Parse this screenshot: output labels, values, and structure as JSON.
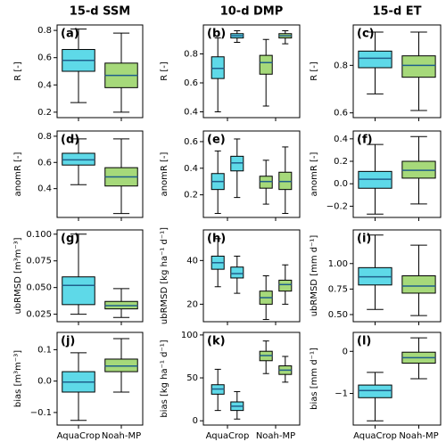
{
  "chart_data": [
    {
      "type": "box",
      "title": "15-d SSM",
      "panel_label": "(a)",
      "ylabel": "R [-]",
      "ylim": [
        0.16,
        0.84
      ],
      "yticks": [
        0.2,
        0.4,
        0.6,
        0.8
      ],
      "colors": [
        "#5ed9e8",
        "#a6d97a"
      ],
      "series": [
        {
          "boxes": [
            {
              "min": 0.27,
              "q1": 0.5,
              "median": 0.58,
              "q3": 0.66,
              "max": 0.81
            },
            {
              "min": 0.2,
              "q1": 0.38,
              "median": 0.47,
              "q3": 0.56,
              "max": 0.78
            }
          ]
        }
      ]
    },
    {
      "type": "box",
      "title": "10-d DMP",
      "panel_label": "(b)",
      "ylabel": "R [-]",
      "ylim": [
        0.36,
        1.0
      ],
      "yticks": [
        0.4,
        0.6,
        0.8
      ],
      "colors": [
        "#5ed9e8",
        "#a6d97a"
      ],
      "series": [
        {
          "boxes": [
            {
              "min": 0.4,
              "q1": 0.63,
              "median": 0.7,
              "q3": 0.78,
              "max": 0.91
            },
            {
              "min": 0.44,
              "q1": 0.66,
              "median": 0.74,
              "q3": 0.79,
              "max": 0.9
            }
          ]
        },
        {
          "boxes": [
            {
              "min": 0.88,
              "q1": 0.91,
              "median": 0.925,
              "q3": 0.94,
              "max": 0.96
            },
            {
              "min": 0.87,
              "q1": 0.91,
              "median": 0.925,
              "q3": 0.94,
              "max": 0.96
            }
          ]
        }
      ]
    },
    {
      "type": "box",
      "title": "15-d ET",
      "panel_label": "(c)",
      "ylabel": "R [-]",
      "ylim": [
        0.58,
        0.97
      ],
      "yticks": [
        0.6,
        0.8
      ],
      "colors": [
        "#5ed9e8",
        "#a6d97a"
      ],
      "series": [
        {
          "boxes": [
            {
              "min": 0.68,
              "q1": 0.79,
              "median": 0.83,
              "q3": 0.86,
              "max": 0.94
            },
            {
              "min": 0.61,
              "q1": 0.75,
              "median": 0.8,
              "q3": 0.84,
              "max": 0.94
            }
          ]
        }
      ]
    },
    {
      "type": "box",
      "panel_label": "(d)",
      "ylabel": "anomR [-]",
      "ylim": [
        0.18,
        0.84
      ],
      "yticks": [
        0.4,
        0.6,
        0.8
      ],
      "colors": [
        "#5ed9e8",
        "#a6d97a"
      ],
      "series": [
        {
          "boxes": [
            {
              "min": 0.43,
              "q1": 0.58,
              "median": 0.62,
              "q3": 0.67,
              "max": 0.78
            },
            {
              "min": 0.21,
              "q1": 0.42,
              "median": 0.49,
              "q3": 0.56,
              "max": 0.78
            }
          ]
        }
      ]
    },
    {
      "type": "box",
      "panel_label": "(e)",
      "ylabel": "anomR [-]",
      "ylim": [
        0.03,
        0.68
      ],
      "yticks": [
        0.2,
        0.4,
        0.6
      ],
      "colors": [
        "#5ed9e8",
        "#a6d97a"
      ],
      "series": [
        {
          "boxes": [
            {
              "min": 0.06,
              "q1": 0.24,
              "median": 0.3,
              "q3": 0.36,
              "max": 0.53
            },
            {
              "min": 0.13,
              "q1": 0.25,
              "median": 0.3,
              "q3": 0.34,
              "max": 0.46
            }
          ]
        },
        {
          "boxes": [
            {
              "min": 0.18,
              "q1": 0.38,
              "median": 0.44,
              "q3": 0.49,
              "max": 0.62
            },
            {
              "min": 0.06,
              "q1": 0.24,
              "median": 0.3,
              "q3": 0.37,
              "max": 0.56
            }
          ]
        }
      ]
    },
    {
      "type": "box",
      "panel_label": "(f)",
      "ylabel": "anomR [-]",
      "ylim": [
        -0.3,
        0.47
      ],
      "yticks": [
        {
          "value": -0.2,
          "label": "−0.2"
        },
        {
          "value": 0,
          "label": "0.0"
        },
        0.2,
        0.4
      ],
      "colors": [
        "#5ed9e8",
        "#a6d97a"
      ],
      "series": [
        {
          "boxes": [
            {
              "min": -0.27,
              "q1": -0.04,
              "median": 0.04,
              "q3": 0.11,
              "max": 0.35
            },
            {
              "min": -0.18,
              "q1": 0.05,
              "median": 0.12,
              "q3": 0.2,
              "max": 0.42
            }
          ]
        }
      ]
    },
    {
      "type": "box",
      "panel_label": "(g)",
      "ylabel": "ubRMSD [m³m⁻³]",
      "ylim": [
        0.018,
        0.104
      ],
      "yticks": [
        0.025,
        {
          "value": 0.05,
          "label": "0.050"
        },
        0.075,
        {
          "value": 0.1,
          "label": "0.100"
        }
      ],
      "colors": [
        "#5ed9e8",
        "#a6d97a"
      ],
      "series": [
        {
          "boxes": [
            {
              "min": 0.025,
              "q1": 0.034,
              "median": 0.052,
              "q3": 0.06,
              "max": 0.1
            },
            {
              "min": 0.022,
              "q1": 0.03,
              "median": 0.033,
              "q3": 0.037,
              "max": 0.049
            }
          ]
        }
      ]
    },
    {
      "type": "box",
      "panel_label": "(h)",
      "ylabel": "ubRMSD [kg ha⁻¹ d⁻¹]",
      "ylim": [
        12,
        54
      ],
      "yticks": [
        20,
        40
      ],
      "colors": [
        "#5ed9e8",
        "#a6d97a"
      ],
      "series": [
        {
          "boxes": [
            {
              "min": 28,
              "q1": 36,
              "median": 39,
              "q3": 42,
              "max": 50
            },
            {
              "min": 13,
              "q1": 20,
              "median": 23,
              "q3": 26,
              "max": 33
            }
          ]
        },
        {
          "boxes": [
            {
              "min": 25,
              "q1": 32,
              "median": 34,
              "q3": 37,
              "max": 42
            },
            {
              "min": 20,
              "q1": 26,
              "median": 29,
              "q3": 31,
              "max": 38
            }
          ]
        }
      ]
    },
    {
      "type": "box",
      "panel_label": "(i)",
      "ylabel": "ubRMSD [mm d⁻¹]",
      "ylim": [
        0.43,
        1.33
      ],
      "yticks": [
        {
          "value": 0.5,
          "label": "0.50"
        },
        0.75,
        {
          "value": 1,
          "label": "1.00"
        }
      ],
      "colors": [
        "#5ed9e8",
        "#a6d97a"
      ],
      "series": [
        {
          "boxes": [
            {
              "min": 0.55,
              "q1": 0.79,
              "median": 0.87,
              "q3": 0.96,
              "max": 1.28
            },
            {
              "min": 0.49,
              "q1": 0.71,
              "median": 0.78,
              "q3": 0.88,
              "max": 1.18
            }
          ]
        }
      ]
    },
    {
      "type": "box",
      "panel_label": "(j)",
      "ylabel": "bias [m³m⁻³]",
      "ylim": [
        -0.14,
        0.155
      ],
      "yticks": [
        {
          "value": -0.1,
          "label": "−0.1"
        },
        {
          "value": 0,
          "label": "0.0"
        },
        0.1
      ],
      "colors": [
        "#5ed9e8",
        "#a6d97a"
      ],
      "categories": [
        "AquaCrop",
        "Noah-MP"
      ],
      "series": [
        {
          "boxes": [
            {
              "min": -0.125,
              "q1": -0.035,
              "median": -0.003,
              "q3": 0.03,
              "max": 0.09
            },
            {
              "min": -0.035,
              "q1": 0.03,
              "median": 0.048,
              "q3": 0.07,
              "max": 0.135
            }
          ]
        }
      ]
    },
    {
      "type": "box",
      "panel_label": "(k)",
      "ylabel": "bias [kg ha⁻¹ d⁻¹]",
      "ylim": [
        -5,
        103
      ],
      "yticks": [
        0,
        50,
        100
      ],
      "colors": [
        "#5ed9e8",
        "#a6d97a"
      ],
      "categories": [
        "AquaCrop",
        "Noah-MP"
      ],
      "series": [
        {
          "boxes": [
            {
              "min": 12,
              "q1": 31,
              "median": 37,
              "q3": 42,
              "max": 60
            },
            {
              "min": 55,
              "q1": 70,
              "median": 76,
              "q3": 81,
              "max": 93
            }
          ]
        },
        {
          "boxes": [
            {
              "min": 2,
              "q1": 12,
              "median": 17,
              "q3": 22,
              "max": 34
            },
            {
              "min": 45,
              "q1": 54,
              "median": 59,
              "q3": 64,
              "max": 75
            }
          ]
        }
      ]
    },
    {
      "type": "box",
      "panel_label": "(l)",
      "ylabel": "bias [mm d⁻¹]",
      "ylim": [
        -1.75,
        0.45
      ],
      "yticks": [
        {
          "value": -1,
          "label": "−1"
        },
        0
      ],
      "colors": [
        "#5ed9e8",
        "#a6d97a"
      ],
      "categories": [
        "AquaCrop",
        "Noah-MP"
      ],
      "series": [
        {
          "boxes": [
            {
              "min": -1.65,
              "q1": -1.1,
              "median": -0.93,
              "q3": -0.8,
              "max": -0.5
            },
            {
              "min": -0.65,
              "q1": -0.28,
              "median": -0.15,
              "q3": -0.02,
              "max": 0.32
            }
          ]
        }
      ]
    }
  ]
}
